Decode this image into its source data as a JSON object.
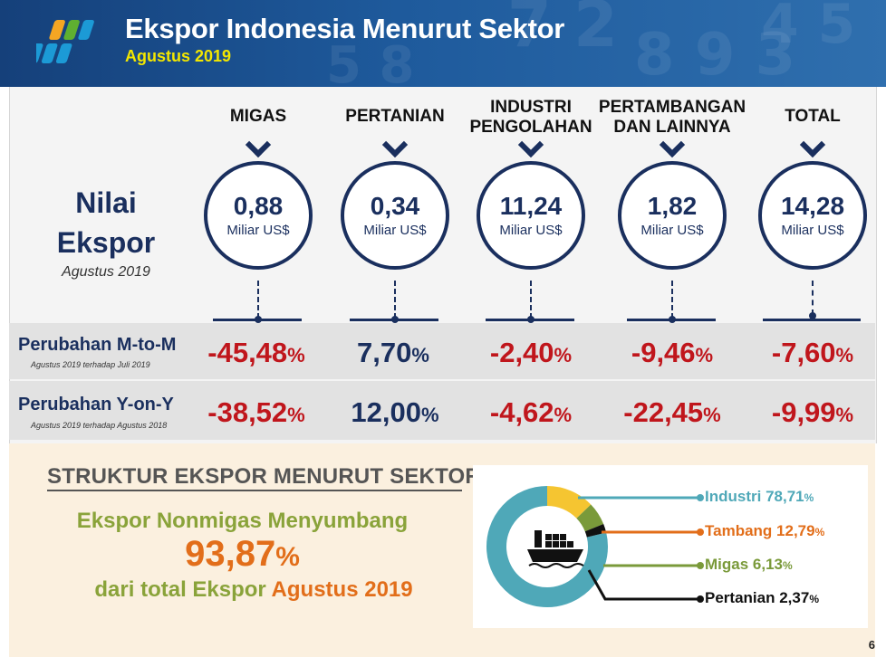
{
  "header": {
    "title": "Ekspor Indonesia Menurut Sektor",
    "subtitle": "Agustus 2019"
  },
  "nilai_ekspor": {
    "label_line1": "Nilai",
    "label_line2": "Ekspor",
    "period": "Agustus 2019"
  },
  "sectors": [
    {
      "name_line1": "MIGAS",
      "name_line2": "",
      "value": "0,88",
      "unit": "Miliar US$",
      "mtm": "-45,48",
      "yoy": "-38,52"
    },
    {
      "name_line1": "PERTANIAN",
      "name_line2": "",
      "value": "0,34",
      "unit": "Miliar US$",
      "mtm": "7,70",
      "yoy": "12,00"
    },
    {
      "name_line1": "INDUSTRI",
      "name_line2": "PENGOLAHAN",
      "value": "11,24",
      "unit": "Miliar US$",
      "mtm": "-2,40",
      "yoy": "-4,62"
    },
    {
      "name_line1": "PERTAMBANGAN",
      "name_line2": "DAN LAINNYA",
      "value": "1,82",
      "unit": "Miliar US$",
      "mtm": "-9,46",
      "yoy": "-22,45"
    },
    {
      "name_line1": "TOTAL",
      "name_line2": "",
      "value": "14,28",
      "unit": "Miliar US$",
      "mtm": "-7,60",
      "yoy": "-9,99"
    }
  ],
  "rows": {
    "mtm_label": "Perubahan M-to-M",
    "mtm_sub": "Agustus 2019  terhadap  Juli 2019",
    "yoy_label": "Perubahan Y-on-Y",
    "yoy_sub": "Agustus 2019  terhadap  Agustus 2018",
    "percent_sign": "%"
  },
  "struktur": {
    "heading": "STRUKTUR EKSPOR MENURUT SEKTOR",
    "line1": "Ekspor Nonmigas Menyumbang",
    "share": "93,87",
    "share_sign": "%",
    "line3_prefix": "dari total Ekspor",
    "line3_period": "Agustus 2019"
  },
  "pie": {
    "slices": [
      {
        "name": "Industri",
        "value": "78,71",
        "num": 78.71,
        "color": "#4fa8b8"
      },
      {
        "name": "Tambang",
        "value": "12,79",
        "num": 12.79,
        "color": "#f5c531"
      },
      {
        "name": "Migas",
        "value": "6,13",
        "num": 6.13,
        "color": "#7a9a3a"
      },
      {
        "name": "Pertanian",
        "value": "2,37",
        "num": 2.37,
        "color": "#111111"
      }
    ],
    "legend_colors": [
      "#4fa8b8",
      "#e26e1a",
      "#7a9a3a",
      "#111111"
    ]
  },
  "colors": {
    "navy": "#1a2f5e",
    "negative": "#c0161c",
    "orange": "#e26e1a",
    "olive": "#8aa33a"
  },
  "page_number": "6"
}
